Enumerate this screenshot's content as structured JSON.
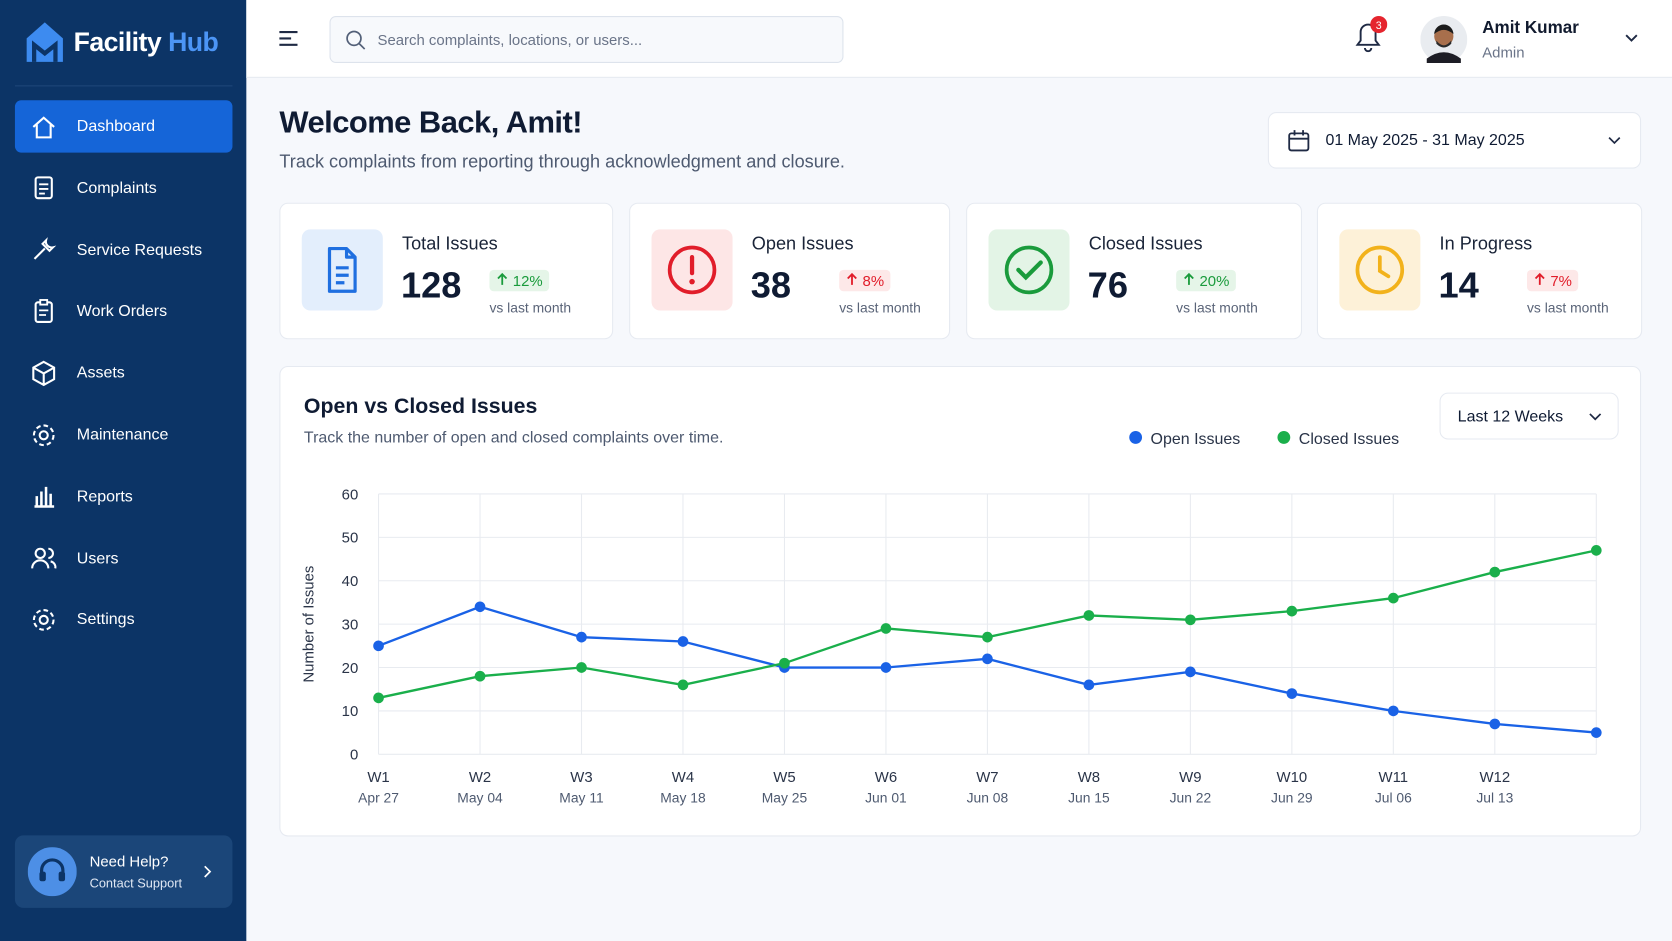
{
  "sidebar": {
    "brand": {
      "first": "Facility",
      "second": "Hub"
    },
    "nav": [
      "Dashboard",
      "Complaints",
      "Service Requests",
      "Work Orders",
      "Assets",
      "Maintenance",
      "Reports",
      "Users",
      "Settings"
    ],
    "help": {
      "title": "Need Help?",
      "subtitle": "Contact Support"
    }
  },
  "header": {
    "search_placeholder": "Search complaints, locations, or users...",
    "notification_count": 3,
    "user": {
      "name": "Amit Kumar",
      "role": "Admin"
    }
  },
  "welcome": {
    "title": "Welcome Back, Amit!",
    "subtitle": "Track complaints from reporting through acknowledgment and closure."
  },
  "date_range": "01 May 2025 - 31 May 2025",
  "stats": [
    {
      "label": "Total Issues",
      "value": 128,
      "change": "12%",
      "note": "vs last month"
    },
    {
      "label": "Open Issues",
      "value": 38,
      "change": "8%",
      "note": "vs last month"
    },
    {
      "label": "Closed Issues",
      "value": 76,
      "change": "20%",
      "note": "vs last month"
    },
    {
      "label": "In Progress",
      "value": 14,
      "change": "7%",
      "note": "vs last month"
    }
  ],
  "chart_data": {
    "type": "line",
    "title": "Open vs Closed Issues",
    "subtitle": "Track the number of open and closed complaints over time.",
    "range_selector": "Last 12 Weeks",
    "y_label": "Number of Issues",
    "categories": [
      "W1",
      "W2",
      "W3",
      "W4",
      "W5",
      "W6",
      "W7",
      "W8",
      "W9",
      "W10",
      "W11",
      "W12",
      null
    ],
    "dates": [
      "Apr 27",
      "May 04",
      "May 11",
      "May 18",
      "May 25",
      "Jun 01",
      "Jun 08",
      "Jun 15",
      "Jun 22",
      "Jun 29",
      "Jul 06",
      "Jul 13",
      null
    ],
    "ylim": [
      0,
      60
    ],
    "yticks": [
      0,
      10,
      20,
      30,
      40,
      50,
      60
    ],
    "grid": true,
    "series": [
      {
        "name": "Open Issues",
        "color": "#1a62e6",
        "values": [
          25,
          34,
          27,
          26,
          20,
          20,
          22,
          16,
          19,
          14,
          10,
          7,
          5
        ]
      },
      {
        "name": "Closed Issues",
        "color": "#1aaf4b",
        "values": [
          13,
          18,
          20,
          16,
          21,
          29,
          27,
          32,
          31,
          33,
          36,
          42,
          47
        ]
      }
    ]
  }
}
